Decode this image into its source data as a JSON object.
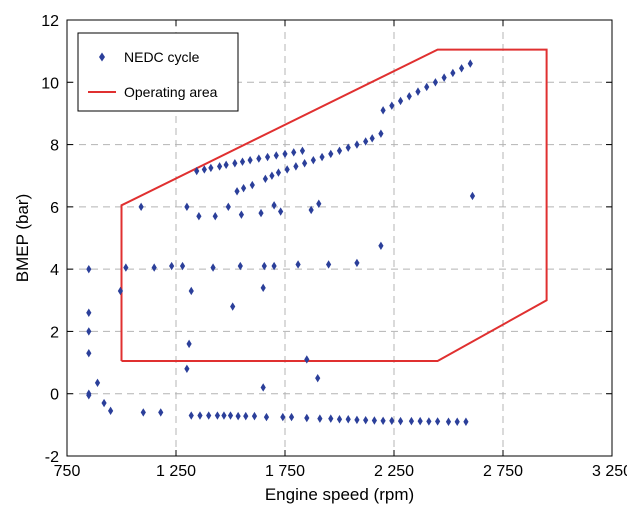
{
  "chart_data": {
    "type": "scatter",
    "xlabel": "Engine speed (rpm)",
    "ylabel": "BMEP (bar)",
    "xlim": [
      750,
      3250
    ],
    "ylim": [
      -2,
      12
    ],
    "xticks": [
      750,
      1250,
      1750,
      2250,
      2750,
      3250
    ],
    "xtick_labels": [
      "750",
      "1 250",
      "1 750",
      "2 250",
      "2 750",
      "3 250"
    ],
    "yticks": [
      -2,
      0,
      2,
      4,
      6,
      8,
      10,
      12
    ],
    "ytick_labels": [
      "-2",
      "0",
      "2",
      "4",
      "6",
      "8",
      "10",
      "12"
    ],
    "grid": true,
    "legend_position": "top-left",
    "colors": {
      "points": "#2b3f9a",
      "area": "#e03030",
      "grid": "#b4b4b4"
    },
    "series": [
      {
        "name": "NEDC cycle",
        "marker": "diamond",
        "points": [
          [
            850,
            4.0
          ],
          [
            850,
            2.6
          ],
          [
            850,
            2.0
          ],
          [
            850,
            1.3
          ],
          [
            850,
            0.0
          ],
          [
            850,
            -0.05
          ],
          [
            890,
            0.35
          ],
          [
            920,
            -0.3
          ],
          [
            950,
            -0.55
          ],
          [
            995,
            3.3
          ],
          [
            1020,
            4.05
          ],
          [
            1090,
            6.0
          ],
          [
            1100,
            -0.6
          ],
          [
            1150,
            4.05
          ],
          [
            1180,
            -0.6
          ],
          [
            1230,
            4.1
          ],
          [
            1280,
            4.1
          ],
          [
            1300,
            6.0
          ],
          [
            1300,
            0.8
          ],
          [
            1310,
            1.6
          ],
          [
            1320,
            3.3
          ],
          [
            1320,
            -0.7
          ],
          [
            1345,
            7.15
          ],
          [
            1355,
            5.7
          ],
          [
            1360,
            -0.7
          ],
          [
            1380,
            7.2
          ],
          [
            1400,
            -0.7
          ],
          [
            1410,
            7.25
          ],
          [
            1420,
            4.05
          ],
          [
            1430,
            5.7
          ],
          [
            1440,
            -0.7
          ],
          [
            1450,
            7.3
          ],
          [
            1470,
            -0.7
          ],
          [
            1480,
            7.35
          ],
          [
            1490,
            6.0
          ],
          [
            1500,
            -0.7
          ],
          [
            1510,
            2.8
          ],
          [
            1520,
            7.4
          ],
          [
            1530,
            6.5
          ],
          [
            1535,
            -0.72
          ],
          [
            1545,
            4.1
          ],
          [
            1550,
            5.75
          ],
          [
            1555,
            7.45
          ],
          [
            1560,
            6.6
          ],
          [
            1570,
            -0.72
          ],
          [
            1590,
            7.5
          ],
          [
            1600,
            6.7
          ],
          [
            1610,
            -0.72
          ],
          [
            1630,
            7.55
          ],
          [
            1640,
            5.8
          ],
          [
            1650,
            0.2
          ],
          [
            1650,
            3.4
          ],
          [
            1655,
            4.1
          ],
          [
            1660,
            6.9
          ],
          [
            1665,
            -0.75
          ],
          [
            1670,
            7.6
          ],
          [
            1690,
            7.0
          ],
          [
            1700,
            4.1
          ],
          [
            1700,
            6.05
          ],
          [
            1710,
            7.65
          ],
          [
            1720,
            7.1
          ],
          [
            1730,
            5.85
          ],
          [
            1740,
            -0.75
          ],
          [
            1750,
            7.7
          ],
          [
            1760,
            7.2
          ],
          [
            1780,
            -0.75
          ],
          [
            1790,
            7.75
          ],
          [
            1800,
            7.3
          ],
          [
            1810,
            4.15
          ],
          [
            1830,
            7.8
          ],
          [
            1840,
            7.4
          ],
          [
            1850,
            1.1
          ],
          [
            1850,
            -0.78
          ],
          [
            1870,
            5.9
          ],
          [
            1880,
            7.5
          ],
          [
            1900,
            0.5
          ],
          [
            1905,
            6.1
          ],
          [
            1910,
            -0.8
          ],
          [
            1920,
            7.6
          ],
          [
            1950,
            4.15
          ],
          [
            1960,
            7.7
          ],
          [
            1960,
            -0.8
          ],
          [
            2000,
            7.8
          ],
          [
            2000,
            -0.82
          ],
          [
            2040,
            7.9
          ],
          [
            2040,
            -0.82
          ],
          [
            2080,
            8.0
          ],
          [
            2080,
            4.2
          ],
          [
            2080,
            -0.84
          ],
          [
            2120,
            8.1
          ],
          [
            2120,
            -0.85
          ],
          [
            2150,
            8.2
          ],
          [
            2160,
            -0.86
          ],
          [
            2190,
            8.35
          ],
          [
            2190,
            4.75
          ],
          [
            2200,
            9.1
          ],
          [
            2200,
            -0.87
          ],
          [
            2240,
            9.25
          ],
          [
            2240,
            -0.87
          ],
          [
            2280,
            9.4
          ],
          [
            2280,
            -0.88
          ],
          [
            2320,
            9.55
          ],
          [
            2330,
            -0.88
          ],
          [
            2360,
            9.7
          ],
          [
            2370,
            -0.88
          ],
          [
            2400,
            9.85
          ],
          [
            2410,
            -0.89
          ],
          [
            2440,
            10.0
          ],
          [
            2450,
            -0.89
          ],
          [
            2480,
            10.15
          ],
          [
            2500,
            -0.9
          ],
          [
            2520,
            10.3
          ],
          [
            2540,
            -0.9
          ],
          [
            2560,
            10.45
          ],
          [
            2580,
            -0.9
          ],
          [
            2600,
            10.6
          ],
          [
            2610,
            6.35
          ]
        ]
      },
      {
        "name": "Operating area",
        "style": "line",
        "points": [
          [
            1000,
            1.05
          ],
          [
            1000,
            6.05
          ],
          [
            2450,
            11.05
          ],
          [
            2950,
            11.05
          ],
          [
            2950,
            3.0
          ],
          [
            2450,
            1.05
          ],
          [
            1000,
            1.05
          ]
        ]
      }
    ]
  }
}
